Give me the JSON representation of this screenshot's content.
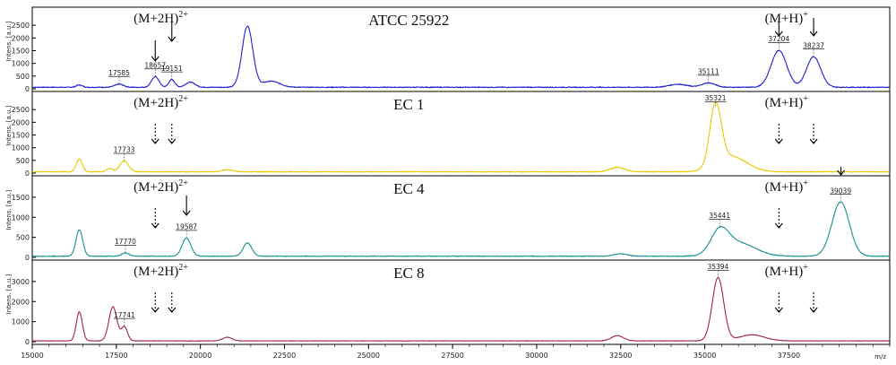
{
  "chart_data": {
    "type": "line",
    "x_axis": {
      "xlim": [
        15000,
        40500
      ],
      "ticks": [
        15000,
        17500,
        20000,
        22500,
        25000,
        27500,
        30000,
        32500,
        35000,
        37500
      ],
      "tick_labels": [
        "15000",
        "17500",
        "20000",
        "22500",
        "25000",
        "27500",
        "30000",
        "32500",
        "35000",
        "37500"
      ],
      "label": "m/z"
    },
    "y_axis_label": "Intens. [a.u.]",
    "ion_labels": {
      "double": "(M+2H)",
      "double_sup": "2+",
      "single": "(M+H)",
      "single_sup": "+"
    },
    "panels": [
      {
        "title": "ATCC 25922",
        "color": "#2020d0",
        "ylim": [
          0,
          3000
        ],
        "yticks": [
          0,
          500,
          1000,
          1500,
          2000,
          2500
        ],
        "baseline": 60,
        "peaks": [
          {
            "x": 16400,
            "h": 90,
            "w": 90
          },
          {
            "x": 17585,
            "h": 120,
            "w": 130
          },
          {
            "x": 18657,
            "h": 420,
            "w": 110
          },
          {
            "x": 19151,
            "h": 300,
            "w": 90
          },
          {
            "x": 19700,
            "h": 200,
            "w": 140
          },
          {
            "x": 21400,
            "h": 2400,
            "w": 160
          },
          {
            "x": 22100,
            "h": 240,
            "w": 260
          },
          {
            "x": 34200,
            "h": 120,
            "w": 260
          },
          {
            "x": 35111,
            "h": 170,
            "w": 200
          },
          {
            "x": 37204,
            "h": 1450,
            "w": 230
          },
          {
            "x": 38237,
            "h": 1200,
            "w": 210
          }
        ],
        "labels": [
          {
            "x": 17585,
            "text": "17585"
          },
          {
            "x": 18657,
            "text": "18657"
          },
          {
            "x": 19151,
            "text": "19151"
          },
          {
            "x": 35111,
            "text": "35111"
          },
          {
            "x": 37204,
            "text": "37204"
          },
          {
            "x": 38237,
            "text": "38237"
          }
        ],
        "arrows": [
          {
            "x": 18657,
            "style": "solid"
          },
          {
            "x": 19151,
            "style": "solid"
          },
          {
            "x": 37204,
            "style": "solid"
          },
          {
            "x": 38237,
            "style": "solid"
          }
        ],
        "ion_label_positions": [
          {
            "kind": "double",
            "x": 19000
          },
          {
            "kind": "single",
            "x": 37000
          }
        ]
      },
      {
        "title": "EC 1",
        "color": "#e8c800",
        "ylim": [
          0,
          3000
        ],
        "yticks": [
          0,
          500,
          1000,
          1500,
          2000,
          2500
        ],
        "baseline": 50,
        "peaks": [
          {
            "x": 16400,
            "h": 500,
            "w": 90
          },
          {
            "x": 17300,
            "h": 130,
            "w": 90
          },
          {
            "x": 17733,
            "h": 420,
            "w": 130
          },
          {
            "x": 20800,
            "h": 80,
            "w": 160
          },
          {
            "x": 32400,
            "h": 180,
            "w": 220
          },
          {
            "x": 35321,
            "h": 2400,
            "w": 170
          },
          {
            "x": 35800,
            "h": 600,
            "w": 450
          }
        ],
        "labels": [
          {
            "x": 17733,
            "text": "17733"
          },
          {
            "x": 35321,
            "text": "35321"
          }
        ],
        "arrows": [
          {
            "x": 18657,
            "style": "dashed"
          },
          {
            "x": 19151,
            "style": "dashed"
          },
          {
            "x": 37204,
            "style": "dashed"
          },
          {
            "x": 38237,
            "style": "dashed"
          },
          {
            "x": 39050,
            "style": "solid-small"
          }
        ],
        "ion_label_positions": [
          {
            "kind": "double",
            "x": 19000
          },
          {
            "kind": "single",
            "x": 37000
          }
        ]
      },
      {
        "title": "EC 4",
        "color": "#1a8f8f",
        "ylim": [
          0,
          1900
        ],
        "yticks": [
          0,
          500,
          1000,
          1500
        ],
        "baseline": 30,
        "peaks": [
          {
            "x": 16400,
            "h": 660,
            "w": 100
          },
          {
            "x": 17770,
            "h": 80,
            "w": 110
          },
          {
            "x": 19587,
            "h": 450,
            "w": 130
          },
          {
            "x": 21400,
            "h": 330,
            "w": 130
          },
          {
            "x": 32500,
            "h": 60,
            "w": 200
          },
          {
            "x": 35441,
            "h": 550,
            "w": 260
          },
          {
            "x": 36000,
            "h": 330,
            "w": 500
          },
          {
            "x": 39039,
            "h": 1350,
            "w": 260
          }
        ],
        "labels": [
          {
            "x": 17770,
            "text": "17770"
          },
          {
            "x": 19587,
            "text": "19587"
          },
          {
            "x": 35441,
            "text": "35441"
          },
          {
            "x": 39039,
            "text": "39039"
          }
        ],
        "arrows": [
          {
            "x": 18657,
            "style": "dashed"
          },
          {
            "x": 19587,
            "style": "solid"
          },
          {
            "x": 37204,
            "style": "dashed"
          }
        ],
        "ion_label_positions": [
          {
            "kind": "double",
            "x": 19000
          },
          {
            "kind": "single",
            "x": 37000
          }
        ]
      },
      {
        "title": "EC 8",
        "color": "#a0205a",
        "ylim": [
          0,
          3800
        ],
        "yticks": [
          0,
          1000,
          2000,
          3000
        ],
        "baseline": 40,
        "peaks": [
          {
            "x": 16400,
            "h": 1450,
            "w": 90
          },
          {
            "x": 17400,
            "h": 1700,
            "w": 120
          },
          {
            "x": 17741,
            "h": 700,
            "w": 90
          },
          {
            "x": 20800,
            "h": 180,
            "w": 140
          },
          {
            "x": 32400,
            "h": 260,
            "w": 180
          },
          {
            "x": 35394,
            "h": 3150,
            "w": 170
          },
          {
            "x": 36400,
            "h": 300,
            "w": 380
          }
        ],
        "labels": [
          {
            "x": 17741,
            "text": "17741"
          },
          {
            "x": 35394,
            "text": "35394"
          }
        ],
        "arrows": [
          {
            "x": 18657,
            "style": "dashed"
          },
          {
            "x": 19151,
            "style": "dashed"
          },
          {
            "x": 37204,
            "style": "dashed"
          },
          {
            "x": 38237,
            "style": "dashed"
          }
        ],
        "ion_label_positions": [
          {
            "kind": "double",
            "x": 19000
          },
          {
            "kind": "single",
            "x": 37000
          }
        ]
      }
    ]
  }
}
